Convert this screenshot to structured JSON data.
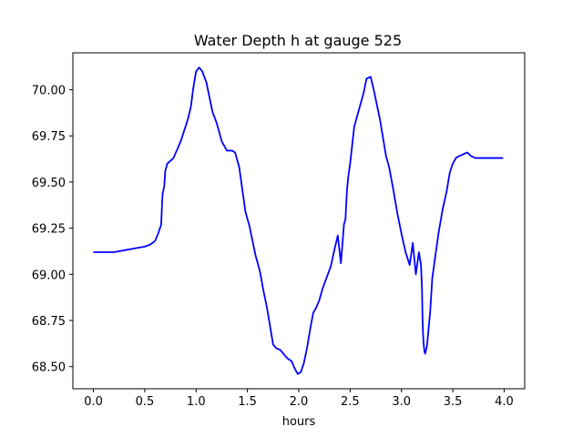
{
  "chart_data": {
    "type": "line",
    "title": "Water Depth h at gauge 525",
    "xlabel": "hours",
    "ylabel": "",
    "xlim": [
      -0.2,
      4.2
    ],
    "ylim": [
      68.38,
      70.2
    ],
    "xticks": [
      0.0,
      0.5,
      1.0,
      1.5,
      2.0,
      2.5,
      3.0,
      3.5,
      4.0
    ],
    "xtick_labels": [
      "0.0",
      "0.5",
      "1.0",
      "1.5",
      "2.0",
      "2.5",
      "3.0",
      "3.5",
      "4.0"
    ],
    "yticks": [
      68.5,
      68.75,
      69.0,
      69.25,
      69.5,
      69.75,
      70.0
    ],
    "ytick_labels": [
      "68.50",
      "68.75",
      "69.00",
      "69.25",
      "69.50",
      "69.75",
      "70.00"
    ],
    "grid": false,
    "legend": "none",
    "series": [
      {
        "color": "#0000ff",
        "x": [
          0.0,
          0.2,
          0.3,
          0.4,
          0.5,
          0.55,
          0.6,
          0.63,
          0.66,
          0.67,
          0.675,
          0.68,
          0.69,
          0.7,
          0.72,
          0.78,
          0.85,
          0.92,
          0.95,
          0.97,
          1.0,
          1.03,
          1.06,
          1.1,
          1.13,
          1.16,
          1.2,
          1.25,
          1.3,
          1.35,
          1.38,
          1.42,
          1.45,
          1.48,
          1.52,
          1.55,
          1.58,
          1.62,
          1.66,
          1.69,
          1.72,
          1.75,
          1.78,
          1.82,
          1.85,
          1.88,
          1.9,
          1.93,
          1.96,
          1.99,
          2.02,
          2.05,
          2.08,
          2.11,
          2.14,
          2.17,
          2.2,
          2.23,
          2.27,
          2.31,
          2.35,
          2.38,
          2.41,
          2.44,
          2.455,
          2.46,
          2.47,
          2.48,
          2.5,
          2.52,
          2.54,
          2.57,
          2.6,
          2.63,
          2.66,
          2.7,
          2.73,
          2.76,
          2.79,
          2.82,
          2.85,
          2.88,
          2.92,
          2.96,
          3.0,
          3.04,
          3.08,
          3.11,
          3.14,
          3.17,
          3.19,
          3.2,
          3.205,
          3.21,
          3.215,
          3.22,
          3.225,
          3.23,
          3.24,
          3.25,
          3.28,
          3.3,
          3.33,
          3.36,
          3.4,
          3.44,
          3.47,
          3.5,
          3.53,
          3.56,
          3.6,
          3.64,
          3.68,
          3.72,
          3.76,
          3.8,
          3.84,
          3.88,
          3.92,
          3.96,
          3.99
        ],
        "y": [
          69.12,
          69.12,
          69.13,
          69.14,
          69.15,
          69.16,
          69.18,
          69.22,
          69.27,
          69.4,
          69.44,
          69.45,
          69.48,
          69.56,
          69.6,
          69.63,
          69.72,
          69.84,
          69.91,
          70.0,
          70.1,
          70.12,
          70.1,
          70.04,
          69.96,
          69.88,
          69.82,
          69.72,
          69.67,
          69.67,
          69.66,
          69.58,
          69.46,
          69.34,
          69.26,
          69.18,
          69.1,
          69.02,
          68.9,
          68.82,
          68.72,
          68.62,
          68.6,
          68.59,
          68.57,
          68.55,
          68.54,
          68.53,
          68.49,
          68.46,
          68.47,
          68.52,
          68.6,
          68.7,
          68.79,
          68.82,
          68.86,
          68.92,
          68.98,
          69.04,
          69.14,
          69.21,
          69.06,
          69.27,
          69.3,
          69.36,
          69.46,
          69.52,
          69.6,
          69.7,
          69.8,
          69.86,
          69.92,
          69.98,
          70.06,
          70.07,
          70.0,
          69.92,
          69.84,
          69.74,
          69.64,
          69.58,
          69.46,
          69.33,
          69.22,
          69.12,
          69.05,
          69.17,
          69.0,
          69.12,
          69.05,
          68.92,
          68.76,
          68.68,
          68.63,
          68.6,
          68.58,
          68.57,
          68.59,
          68.62,
          68.8,
          68.98,
          69.1,
          69.22,
          69.35,
          69.45,
          69.55,
          69.6,
          69.63,
          69.64,
          69.65,
          69.66,
          69.64,
          69.63,
          69.63,
          69.63,
          69.63,
          69.63,
          69.63,
          69.63,
          69.63
        ]
      }
    ]
  }
}
